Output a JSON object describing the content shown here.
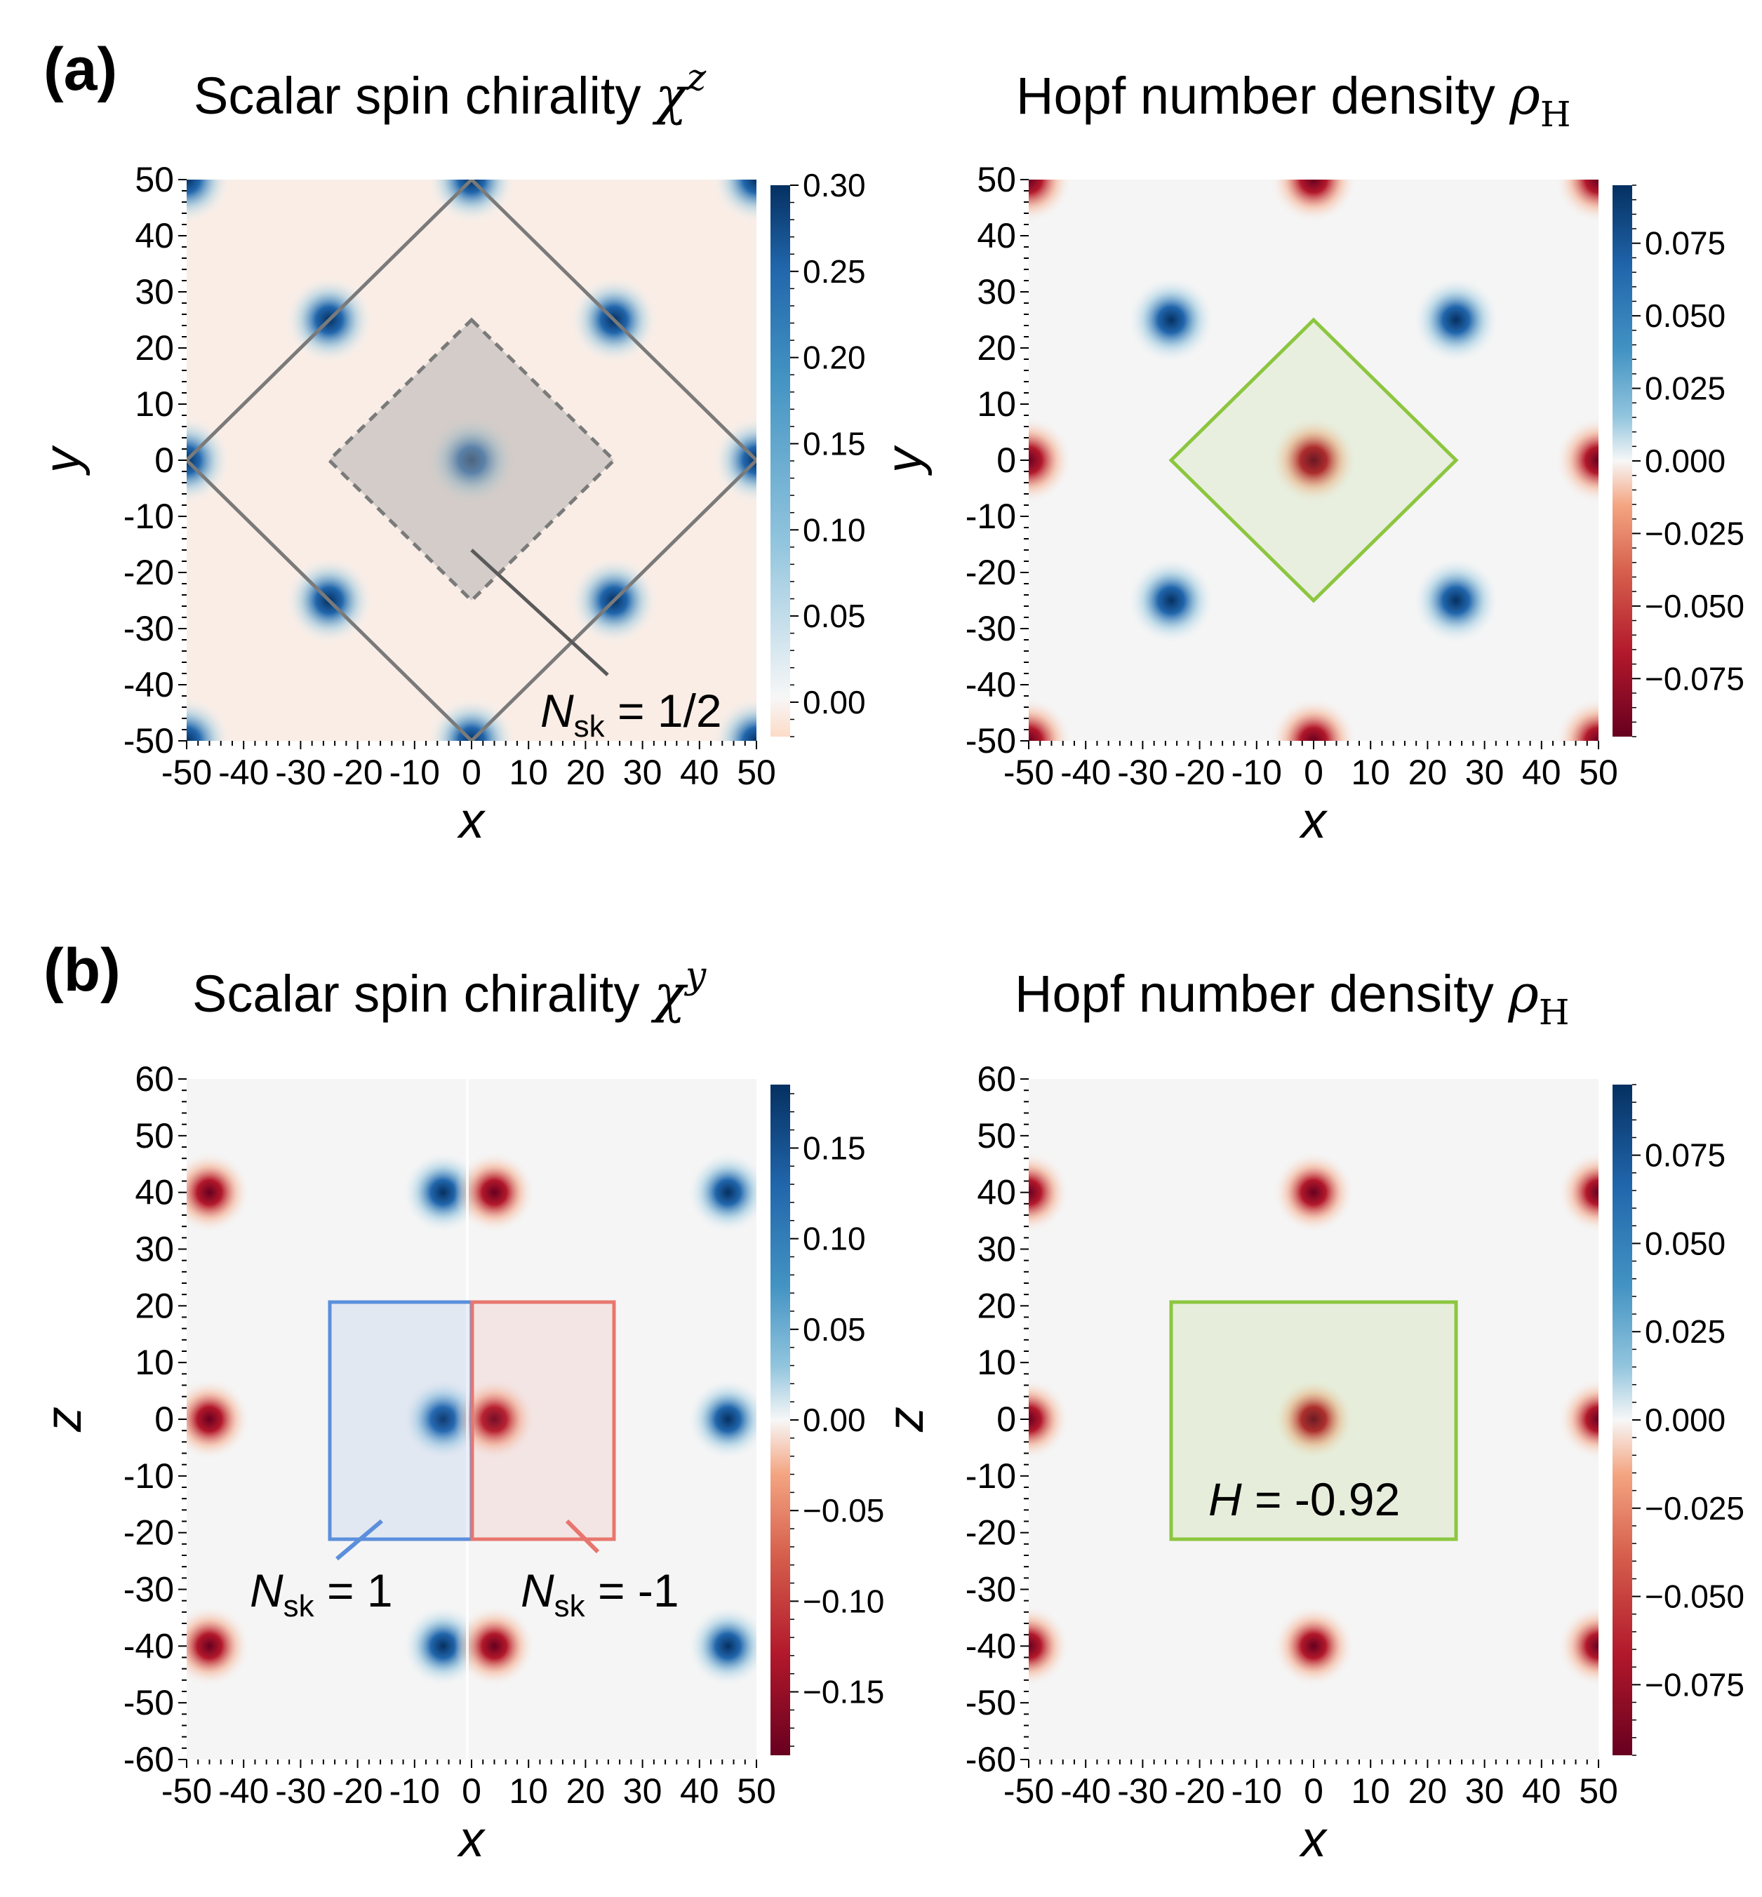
{
  "panel_labels": {
    "a": "(a)",
    "b": "(b)"
  },
  "titles": {
    "a_left": {
      "text": "Scalar spin chirality ",
      "symbol": "χ",
      "sup": "z"
    },
    "a_right": {
      "text": "Hopf number density ",
      "symbol": "ρ",
      "sub": "H"
    },
    "b_left": {
      "text": "Scalar spin chirality ",
      "symbol": "χ",
      "sup": "y"
    },
    "b_right": {
      "text": "Hopf number density ",
      "symbol": "ρ",
      "sub": "H"
    }
  },
  "annotations": {
    "a_left": {
      "label": "N",
      "sub": "sk",
      "value": " = 1/2"
    },
    "b_left_blue": {
      "label": "N",
      "sub": "sk",
      "value": " = 1"
    },
    "b_left_red": {
      "label": "N",
      "sub": "sk",
      "value": " = -1"
    },
    "b_right": {
      "label": "H",
      "value": " = -0.92"
    }
  },
  "colors": {
    "blue_dark": "#053061",
    "blue_mid": "#2166ac",
    "white": "#f7f7f7",
    "red_mid": "#b2182b",
    "red_dark": "#67001f",
    "outline_gray": "#7a7a7a",
    "outline_green": "#8cc63f",
    "box_blue": "#5b8fdc",
    "box_red": "#e8766e"
  },
  "chart_data": [
    {
      "id": "a-left",
      "type": "heatmap",
      "title": "Scalar spin chirality χ^z",
      "xlabel": "x",
      "ylabel": "y",
      "xlim": [
        -50,
        50
      ],
      "ylim": [
        -50,
        50
      ],
      "xticks": [
        -50,
        -40,
        -30,
        -20,
        -10,
        0,
        10,
        20,
        30,
        40,
        50
      ],
      "yticks": [
        -50,
        -40,
        -30,
        -20,
        -10,
        0,
        10,
        20,
        30,
        40,
        50
      ],
      "colorbar": {
        "min": -0.02,
        "max": 0.3,
        "ticks": [
          "0.00",
          "0.05",
          "0.10",
          "0.15",
          "0.20",
          "0.25",
          "0.30"
        ],
        "values": [
          0,
          0.05,
          0.1,
          0.15,
          0.2,
          0.25,
          0.3
        ]
      },
      "spots": [
        {
          "x": 0,
          "y": 0,
          "value": 0.3
        },
        {
          "x": 25,
          "y": 25,
          "value": 0.3
        },
        {
          "x": -25,
          "y": 25,
          "value": 0.3
        },
        {
          "x": 25,
          "y": -25,
          "value": 0.3
        },
        {
          "x": -25,
          "y": -25,
          "value": 0.3
        },
        {
          "x": 0,
          "y": 50,
          "value": 0.3
        },
        {
          "x": 0,
          "y": -50,
          "value": 0.3
        },
        {
          "x": 50,
          "y": 0,
          "value": 0.3
        },
        {
          "x": -50,
          "y": 0,
          "value": 0.3
        },
        {
          "x": 50,
          "y": 50,
          "value": 0.3
        },
        {
          "x": -50,
          "y": 50,
          "value": 0.3
        },
        {
          "x": 50,
          "y": -50,
          "value": 0.3
        },
        {
          "x": -50,
          "y": -50,
          "value": 0.3
        }
      ],
      "background": -0.005
    },
    {
      "id": "a-right",
      "type": "heatmap",
      "title": "Hopf number density ρ_H",
      "xlabel": "x",
      "ylabel": "y",
      "xlim": [
        -50,
        50
      ],
      "ylim": [
        -50,
        50
      ],
      "xticks": [
        -50,
        -40,
        -30,
        -20,
        -10,
        0,
        10,
        20,
        30,
        40,
        50
      ],
      "yticks": [
        -50,
        -40,
        -30,
        -20,
        -10,
        0,
        10,
        20,
        30,
        40,
        50
      ],
      "colorbar": {
        "min": -0.095,
        "max": 0.095,
        "ticks": [
          "0.075",
          "0.050",
          "0.025",
          "0.000",
          "−0.025",
          "−0.050",
          "−0.075"
        ],
        "values": [
          0.075,
          0.05,
          0.025,
          0,
          -0.025,
          -0.05,
          -0.075
        ]
      },
      "spots": [
        {
          "x": 0,
          "y": 0,
          "value": -0.095
        },
        {
          "x": 25,
          "y": 25,
          "value": 0.095
        },
        {
          "x": -25,
          "y": 25,
          "value": 0.095
        },
        {
          "x": 25,
          "y": -25,
          "value": 0.095
        },
        {
          "x": -25,
          "y": -25,
          "value": 0.095
        },
        {
          "x": 0,
          "y": 50,
          "value": -0.095
        },
        {
          "x": 0,
          "y": -50,
          "value": -0.095
        },
        {
          "x": 50,
          "y": 0,
          "value": -0.095
        },
        {
          "x": -50,
          "y": 0,
          "value": -0.095
        },
        {
          "x": 50,
          "y": 50,
          "value": -0.095
        },
        {
          "x": -50,
          "y": 50,
          "value": -0.095
        },
        {
          "x": 50,
          "y": -50,
          "value": -0.095
        },
        {
          "x": -50,
          "y": -50,
          "value": -0.095
        }
      ],
      "background": 0
    },
    {
      "id": "b-left",
      "type": "heatmap",
      "title": "Scalar spin chirality χ^y",
      "xlabel": "x",
      "ylabel": "z",
      "xlim": [
        -50,
        50
      ],
      "ylim": [
        -60,
        60
      ],
      "xticks": [
        -50,
        -40,
        -30,
        -20,
        -10,
        0,
        10,
        20,
        30,
        40,
        50
      ],
      "yticks": [
        -60,
        -50,
        -40,
        -30,
        -20,
        -10,
        0,
        10,
        20,
        30,
        40,
        50,
        60
      ],
      "colorbar": {
        "min": -0.185,
        "max": 0.185,
        "ticks": [
          "0.15",
          "0.10",
          "0.05",
          "0.00",
          "−0.05",
          "−0.10",
          "−0.15"
        ],
        "values": [
          0.15,
          0.1,
          0.05,
          0,
          -0.05,
          -0.1,
          -0.15
        ]
      },
      "spots": [
        {
          "x": -46,
          "y": 40,
          "value": -0.185
        },
        {
          "x": -46,
          "y": 0,
          "value": -0.185
        },
        {
          "x": -46,
          "y": -40,
          "value": -0.185
        },
        {
          "x": -5,
          "y": 40,
          "value": 0.185
        },
        {
          "x": -5,
          "y": 0,
          "value": 0.185
        },
        {
          "x": -5,
          "y": -40,
          "value": 0.185
        },
        {
          "x": 4,
          "y": 40,
          "value": -0.185
        },
        {
          "x": 4,
          "y": 0,
          "value": -0.185
        },
        {
          "x": 4,
          "y": -40,
          "value": -0.185
        },
        {
          "x": 45,
          "y": 40,
          "value": 0.185
        },
        {
          "x": 45,
          "y": 0,
          "value": 0.185
        },
        {
          "x": 45,
          "y": -40,
          "value": 0.185
        }
      ],
      "background": 0
    },
    {
      "id": "b-right",
      "type": "heatmap",
      "title": "Hopf number density ρ_H",
      "xlabel": "x",
      "ylabel": "z",
      "xlim": [
        -50,
        50
      ],
      "ylim": [
        -60,
        60
      ],
      "xticks": [
        -50,
        -40,
        -30,
        -20,
        -10,
        0,
        10,
        20,
        30,
        40,
        50
      ],
      "yticks": [
        -60,
        -50,
        -40,
        -30,
        -20,
        -10,
        0,
        10,
        20,
        30,
        40,
        50,
        60
      ],
      "colorbar": {
        "min": -0.095,
        "max": 0.095,
        "ticks": [
          "0.075",
          "0.050",
          "0.025",
          "0.000",
          "−0.025",
          "−0.050",
          "−0.075"
        ],
        "values": [
          0.075,
          0.05,
          0.025,
          0,
          -0.025,
          -0.05,
          -0.075
        ]
      },
      "spots": [
        {
          "x": 0,
          "y": 40,
          "value": -0.095
        },
        {
          "x": 0,
          "y": 0,
          "value": -0.095
        },
        {
          "x": 0,
          "y": -40,
          "value": -0.095
        },
        {
          "x": -50,
          "y": 40,
          "value": -0.095
        },
        {
          "x": -50,
          "y": 0,
          "value": -0.095
        },
        {
          "x": -50,
          "y": -40,
          "value": -0.095
        },
        {
          "x": 50,
          "y": 40,
          "value": -0.095
        },
        {
          "x": 50,
          "y": 0,
          "value": -0.095
        },
        {
          "x": 50,
          "y": -40,
          "value": -0.095
        }
      ],
      "background": 0
    }
  ]
}
